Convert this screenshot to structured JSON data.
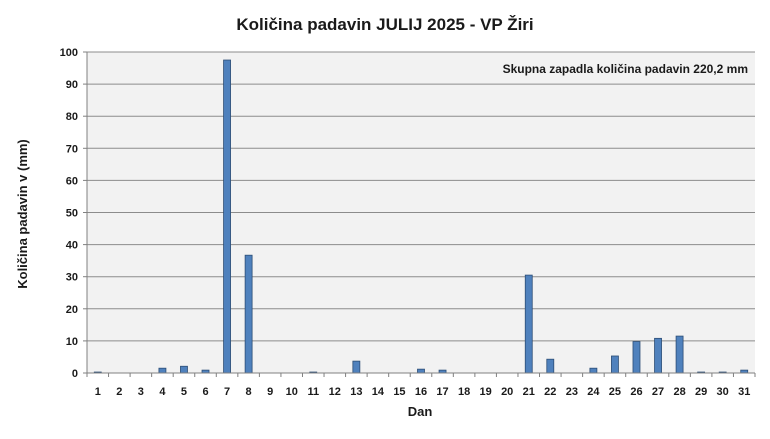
{
  "colors": {
    "bar_fill": "#4f81bd",
    "bar_stroke": "#2c4d75",
    "plot_bg": "#f2f2f2",
    "grid": "#8c8c8c",
    "axis": "#808080"
  },
  "chart_data": {
    "type": "bar",
    "title": "Količina padavin JULIJ 2025 - VP Žiri",
    "xlabel": "Dan",
    "ylabel": "Količina padavin v  (mm)",
    "annotation": "Skupna zapadla količina padavin 220,2 mm",
    "ylim": [
      0,
      100
    ],
    "yticks": [
      "0",
      "10",
      "20",
      "30",
      "40",
      "50",
      "60",
      "70",
      "80",
      "90",
      "100"
    ],
    "grid": true,
    "categories": [
      "1",
      "2",
      "3",
      "4",
      "5",
      "6",
      "7",
      "8",
      "9",
      "10",
      "11",
      "12",
      "13",
      "14",
      "15",
      "16",
      "17",
      "18",
      "19",
      "20",
      "21",
      "22",
      "23",
      "24",
      "25",
      "26",
      "27",
      "28",
      "29",
      "30",
      "31"
    ],
    "values": [
      0.3,
      0,
      0,
      1.5,
      2.1,
      0.9,
      97.5,
      36.7,
      0,
      0,
      0.3,
      0,
      3.7,
      0,
      0,
      1.2,
      0.9,
      0,
      0,
      0,
      30.5,
      4.3,
      0,
      1.5,
      5.3,
      9.8,
      10.8,
      11.5,
      0.3,
      0.3,
      0.9
    ]
  }
}
